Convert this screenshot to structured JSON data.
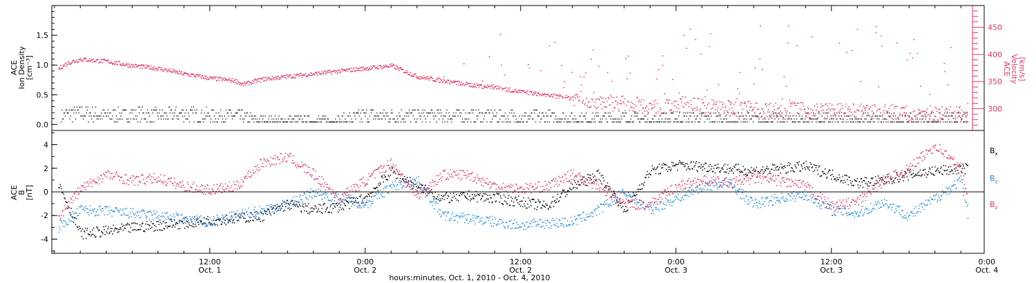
{
  "colors": {
    "axis": "#000000",
    "ion_density": "#000000",
    "velocity": "#e8315f",
    "bx": "#000000",
    "by": "#1e88e5",
    "bz": "#e8315f"
  },
  "chart_data": [
    {
      "type": "scatter",
      "panel": "top",
      "ylabel_left": [
        "ACE",
        "Ion Density",
        "[cm⁻³]"
      ],
      "ylabel_right": [
        "ACE",
        "Velocity",
        "[km/s]"
      ],
      "ylim_left": [
        -0.1,
        2.0
      ],
      "yticks_left": [
        "0.0",
        "0.5",
        "1.0",
        "1.5"
      ],
      "yticks_left_values": [
        0.0,
        0.5,
        1.0,
        1.5
      ],
      "ylim_right": [
        260,
        490
      ],
      "yticks_right": [
        "300",
        "350",
        "400",
        "450"
      ],
      "yticks_right_values": [
        300,
        350,
        400,
        450
      ],
      "x_unit": "hours since Oct. 1, 2010 00:00",
      "xlim_hours": [
        -0.2,
        71.8
      ],
      "series": [
        {
          "role": "ion_density",
          "axis": "left",
          "x_hours": [
            0,
            2,
            4,
            6,
            8,
            10,
            12,
            14,
            16,
            18,
            20,
            22,
            24,
            26,
            28,
            30,
            32,
            34,
            36,
            38,
            40,
            42,
            44,
            46,
            48,
            50,
            52,
            54,
            56,
            58,
            60,
            62,
            64,
            66,
            68,
            70,
            70.5
          ],
          "values": [
            0.15,
            0.2,
            0.15,
            0.18,
            0.15,
            0.18,
            0.15,
            0.15,
            0.05,
            0.05,
            0.05,
            0.05,
            0.15,
            0.15,
            0.15,
            0.15,
            0.15,
            0.15,
            0.12,
            0.12,
            0.1,
            0.1,
            0.1,
            0.08,
            0.1,
            0.1,
            0.1,
            0.08,
            0.08,
            0.1,
            0.08,
            0.08,
            0.08,
            0.08,
            0.08,
            0.08,
            0.08
          ]
        },
        {
          "role": "velocity",
          "axis": "right",
          "x_hours": [
            0,
            1,
            2,
            3,
            4,
            6,
            8,
            10,
            12,
            14,
            14.5,
            16,
            18,
            20,
            22,
            24,
            26,
            28,
            30,
            32,
            34,
            36,
            38,
            40,
            42,
            44,
            46,
            47,
            48,
            50,
            52,
            54,
            56,
            58,
            60,
            62,
            64,
            66,
            68,
            70,
            70.5
          ],
          "values": [
            370,
            385,
            392,
            390,
            388,
            380,
            375,
            365,
            357,
            352,
            345,
            355,
            360,
            365,
            370,
            375,
            380,
            360,
            352,
            345,
            340,
            332,
            326,
            320,
            315,
            310,
            305,
            300,
            310,
            305,
            302,
            300,
            298,
            298,
            296,
            295,
            295,
            293,
            292,
            290,
            292
          ]
        }
      ]
    },
    {
      "type": "scatter",
      "panel": "bottom",
      "ylabel_left": [
        "ACE",
        "B",
        "[nT]"
      ],
      "ylim": [
        -5.2,
        5.2
      ],
      "yticks": [
        "-4",
        "-2",
        "0",
        "2",
        "4"
      ],
      "yticks_values": [
        -4,
        -2,
        0,
        2,
        4
      ],
      "zero_line": true,
      "x_unit": "hours since Oct. 1, 2010 00:00",
      "xlim_hours": [
        -0.2,
        71.8
      ],
      "xticks": [
        "12:00",
        "0:00",
        "12:00",
        "0:00",
        "12:00",
        "0:00"
      ],
      "xticks_dates": [
        "Oct. 1",
        "Oct. 2",
        "Oct. 2",
        "Oct. 3",
        "Oct. 3",
        "Oct. 4"
      ],
      "xticks_hours": [
        12,
        24,
        36,
        48,
        60,
        72
      ],
      "xlabel": "hours:minutes, Oct.  1, 2010 - Oct.  4, 2010",
      "legend": [
        "B",
        "B",
        "B"
      ],
      "legend_subscripts": [
        "x",
        "y",
        "z"
      ],
      "legend_position": "right",
      "series": [
        {
          "role": "bx",
          "x_hours": [
            0,
            2,
            4,
            6,
            8,
            10,
            12,
            14,
            16,
            18,
            20,
            22,
            24,
            26,
            28,
            30,
            32,
            34,
            36,
            38,
            40,
            42,
            44,
            46,
            48,
            50,
            52,
            54,
            56,
            58,
            60,
            62,
            64,
            66,
            68,
            70,
            70.5
          ],
          "values": [
            1.5,
            -3.5,
            -3.3,
            -3.0,
            -2.8,
            -2.6,
            -2.4,
            -2.2,
            -2.0,
            -1.0,
            -1.5,
            -1.2,
            -0.5,
            1.8,
            0.5,
            -0.5,
            -0.3,
            -0.5,
            -0.8,
            -1.2,
            0.5,
            1.5,
            -1.5,
            1.8,
            2.3,
            2.2,
            2.0,
            1.8,
            2.0,
            2.2,
            1.5,
            0.8,
            1.0,
            1.5,
            1.8,
            2.0,
            2.0
          ]
        },
        {
          "role": "by",
          "x_hours": [
            0,
            2,
            4,
            6,
            8,
            10,
            12,
            14,
            16,
            18,
            20,
            22,
            24,
            26,
            28,
            30,
            32,
            34,
            36,
            38,
            40,
            42,
            44,
            46,
            48,
            50,
            52,
            54,
            56,
            58,
            60,
            62,
            64,
            66,
            68,
            70,
            70.5
          ],
          "values": [
            -3.2,
            -1.5,
            -1.6,
            -1.8,
            -2.0,
            -2.3,
            -2.5,
            -2.0,
            -1.5,
            -1.0,
            0.0,
            -0.5,
            -1.0,
            0.5,
            1.0,
            -2.0,
            -2.2,
            -2.5,
            -2.8,
            -2.6,
            -2.5,
            -1.5,
            0.0,
            -1.5,
            -0.5,
            0.5,
            0.8,
            -1.0,
            -0.5,
            -0.2,
            -1.5,
            -1.8,
            -0.8,
            -2.0,
            -0.5,
            1.0,
            -1.8
          ]
        },
        {
          "role": "bz",
          "x_hours": [
            0,
            2,
            4,
            6,
            8,
            10,
            12,
            14,
            16,
            18,
            20,
            22,
            24,
            26,
            28,
            30,
            32,
            34,
            36,
            38,
            40,
            42,
            44,
            46,
            48,
            50,
            52,
            54,
            56,
            58,
            60,
            62,
            64,
            66,
            68,
            70,
            70.5
          ],
          "values": [
            -2.5,
            0.3,
            1.5,
            1.0,
            1.2,
            0.5,
            0.2,
            0.5,
            2.5,
            3.0,
            1.5,
            -0.5,
            1.0,
            2.5,
            -0.3,
            1.5,
            1.5,
            0.5,
            0.3,
            0.5,
            1.5,
            0.5,
            -1.0,
            -1.0,
            0.5,
            1.0,
            0.8,
            1.2,
            1.0,
            0.5,
            -1.2,
            -0.8,
            1.0,
            2.0,
            4.0,
            2.0,
            -0.8
          ]
        }
      ]
    }
  ]
}
